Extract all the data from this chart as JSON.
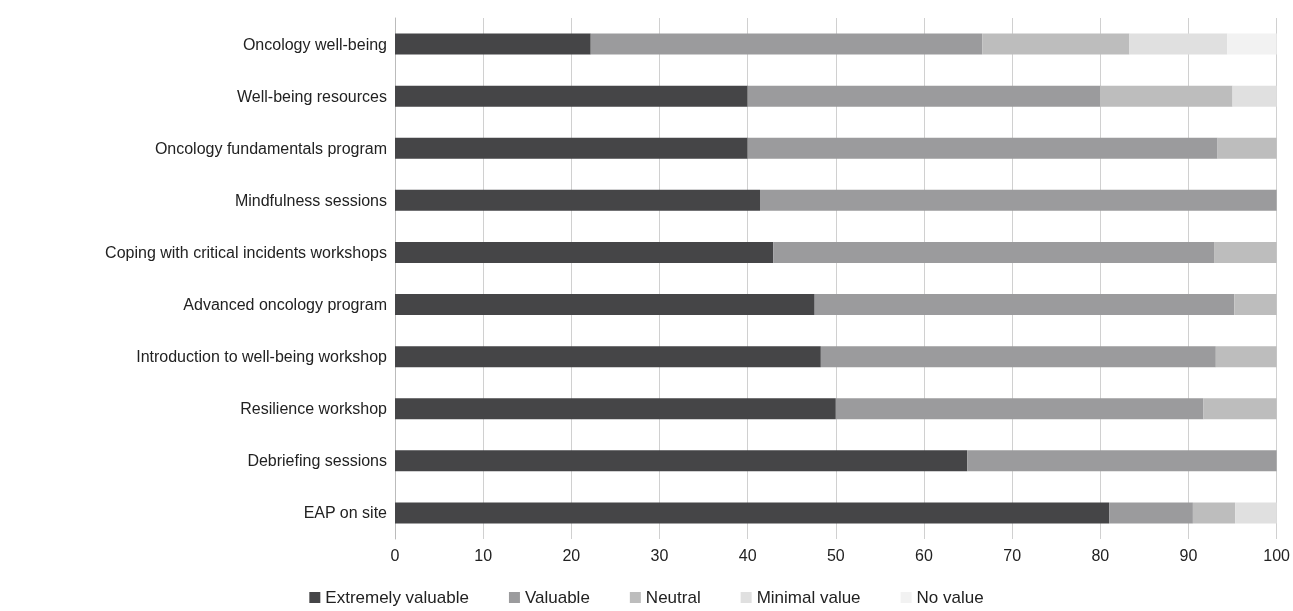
{
  "chart_data": {
    "type": "bar",
    "orientation": "horizontal",
    "stacked": true,
    "categories": [
      "Oncology well-being",
      "Well-being resources",
      "Oncology fundamentals program",
      "Mindfulness sessions",
      "Coping with critical incidents workshops",
      "Advanced oncology program",
      "Introduction to well-being workshop",
      "Resilience workshop",
      "Debriefing sessions",
      "EAP on site"
    ],
    "series": [
      {
        "name": "Extremely valuable",
        "color": "#454547",
        "values": [
          22.2,
          40,
          40,
          41.4,
          42.9,
          47.6,
          48.3,
          50,
          64.9,
          81
        ]
      },
      {
        "name": "Valuable",
        "color": "#9b9b9d",
        "values": [
          44.4,
          40,
          53.3,
          58.6,
          50,
          47.6,
          44.8,
          41.7,
          35.1,
          9.5
        ]
      },
      {
        "name": "Neutral",
        "color": "#bdbdbd",
        "values": [
          16.7,
          15,
          6.7,
          null,
          7.1,
          4.8,
          6.9,
          8.3,
          null,
          4.8
        ]
      },
      {
        "name": "Minimal value",
        "color": "#e0e0e0",
        "values": [
          11.1,
          5,
          null,
          null,
          null,
          null,
          null,
          null,
          null,
          4.8
        ]
      },
      {
        "name": "No value",
        "color": "#f2f2f2",
        "values": [
          5.6,
          null,
          null,
          null,
          null,
          null,
          null,
          null,
          null,
          null
        ]
      }
    ],
    "xlim": [
      0,
      100
    ],
    "xticks": [
      0,
      10,
      20,
      30,
      40,
      50,
      60,
      70,
      80,
      90,
      100
    ],
    "grid": "x",
    "legend": "bottom"
  }
}
